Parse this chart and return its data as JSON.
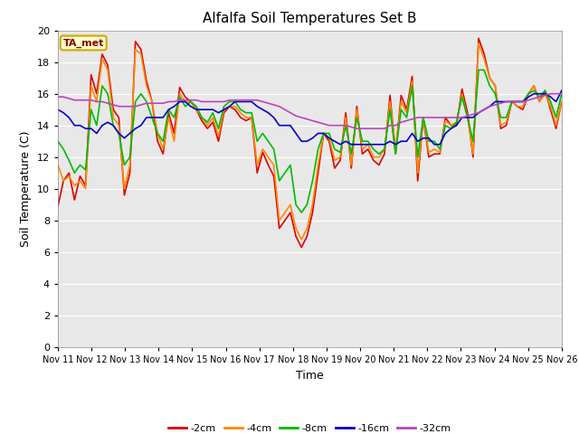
{
  "title": "Alfalfa Soil Temperatures Set B",
  "xlabel": "Time",
  "ylabel": "Soil Temperature (C)",
  "ylim": [
    0,
    20
  ],
  "yticks": [
    0,
    2,
    4,
    6,
    8,
    10,
    12,
    14,
    16,
    18,
    20
  ],
  "xtick_labels": [
    "Nov 11",
    "Nov 12",
    "Nov 13",
    "Nov 14",
    "Nov 15",
    "Nov 16",
    "Nov 17",
    "Nov 18",
    "Nov 19",
    "Nov 20",
    "Nov 21",
    "Nov 22",
    "Nov 23",
    "Nov 24",
    "Nov 25",
    "Nov 26"
  ],
  "fig_bg_color": "#ffffff",
  "plot_bg_color": "#e8e8e8",
  "grid_color": "#ffffff",
  "annotation_text": "TA_met",
  "annotation_bg": "#ffffcc",
  "annotation_border": "#ccaa00",
  "annotation_text_color": "#880000",
  "colors": {
    "-2cm": "#dd0000",
    "-4cm": "#ff8800",
    "-8cm": "#00bb00",
    "-16cm": "#0000cc",
    "-32cm": "#bb44bb"
  },
  "linewidth": 1.2,
  "series": {
    "-2cm": [
      8.9,
      10.5,
      11.0,
      9.3,
      10.8,
      10.2,
      17.2,
      16.0,
      18.5,
      17.8,
      15.0,
      14.5,
      9.6,
      11.0,
      19.3,
      18.8,
      16.8,
      15.5,
      13.0,
      12.2,
      14.8,
      13.5,
      16.4,
      15.8,
      15.5,
      15.0,
      14.3,
      13.8,
      14.2,
      13.0,
      14.8,
      15.2,
      15.0,
      14.5,
      14.3,
      14.5,
      11.0,
      12.3,
      11.5,
      10.8,
      7.5,
      8.0,
      8.5,
      7.0,
      6.3,
      7.0,
      8.5,
      11.0,
      13.5,
      13.0,
      11.3,
      11.8,
      14.8,
      11.3,
      15.2,
      12.2,
      12.5,
      11.8,
      11.5,
      12.2,
      15.9,
      12.2,
      15.9,
      15.0,
      17.1,
      10.5,
      14.5,
      12.0,
      12.2,
      12.2,
      14.5,
      14.0,
      14.0,
      16.3,
      14.8,
      12.0,
      19.5,
      18.5,
      17.0,
      16.5,
      13.8,
      14.0,
      15.5,
      15.2,
      15.0,
      16.0,
      16.5,
      15.5,
      16.2,
      15.0,
      13.8,
      15.5
    ],
    "-4cm": [
      11.5,
      10.5,
      10.8,
      10.2,
      10.5,
      10.0,
      16.5,
      15.5,
      18.2,
      17.5,
      14.5,
      14.0,
      10.0,
      11.5,
      18.8,
      18.5,
      16.5,
      15.5,
      13.5,
      12.5,
      14.5,
      13.0,
      16.0,
      15.5,
      15.5,
      15.0,
      14.5,
      14.0,
      14.5,
      13.3,
      15.0,
      15.2,
      15.2,
      14.8,
      14.5,
      14.5,
      11.5,
      12.5,
      12.0,
      11.5,
      8.0,
      8.5,
      9.0,
      7.5,
      6.8,
      7.5,
      9.0,
      11.5,
      13.5,
      13.2,
      11.8,
      12.0,
      14.5,
      11.5,
      15.0,
      12.5,
      12.8,
      12.0,
      12.0,
      12.5,
      15.5,
      12.5,
      15.5,
      14.8,
      16.8,
      11.0,
      14.5,
      12.3,
      12.5,
      12.3,
      14.3,
      14.0,
      14.2,
      16.0,
      14.5,
      12.2,
      19.2,
      18.2,
      17.0,
      16.5,
      14.0,
      14.2,
      15.5,
      15.2,
      15.2,
      16.0,
      16.5,
      15.5,
      16.0,
      15.2,
      14.0,
      15.5
    ],
    "-8cm": [
      13.0,
      12.5,
      11.8,
      11.0,
      11.5,
      11.2,
      15.0,
      14.0,
      16.5,
      16.0,
      14.0,
      13.5,
      11.5,
      12.0,
      15.5,
      16.0,
      15.5,
      14.5,
      13.5,
      13.0,
      15.0,
      14.5,
      15.8,
      15.2,
      15.5,
      15.2,
      14.5,
      14.2,
      14.8,
      13.8,
      15.2,
      15.5,
      15.5,
      15.0,
      14.8,
      14.8,
      13.0,
      13.5,
      13.0,
      12.5,
      10.5,
      11.0,
      11.5,
      9.0,
      8.5,
      9.0,
      10.5,
      12.5,
      13.5,
      13.5,
      12.5,
      12.3,
      14.0,
      12.2,
      14.5,
      13.0,
      13.0,
      12.5,
      12.2,
      12.5,
      15.0,
      12.2,
      15.0,
      14.5,
      16.5,
      12.0,
      14.5,
      13.0,
      13.0,
      12.5,
      14.0,
      13.8,
      14.2,
      15.8,
      14.5,
      13.0,
      17.5,
      17.5,
      16.5,
      16.0,
      14.5,
      14.5,
      15.5,
      15.5,
      15.5,
      16.0,
      16.2,
      15.8,
      16.2,
      15.5,
      14.5,
      16.0
    ],
    "-16cm": [
      15.0,
      14.8,
      14.5,
      14.0,
      14.0,
      13.8,
      13.8,
      13.5,
      14.0,
      14.2,
      14.0,
      13.5,
      13.2,
      13.5,
      13.8,
      14.0,
      14.5,
      14.5,
      14.5,
      14.5,
      15.0,
      15.2,
      15.5,
      15.5,
      15.2,
      15.0,
      15.0,
      15.0,
      15.0,
      14.8,
      15.0,
      15.2,
      15.5,
      15.5,
      15.5,
      15.5,
      15.2,
      15.0,
      14.8,
      14.5,
      14.0,
      14.0,
      14.0,
      13.5,
      13.0,
      13.0,
      13.2,
      13.5,
      13.5,
      13.2,
      13.0,
      12.8,
      13.0,
      12.8,
      12.8,
      12.8,
      12.8,
      12.8,
      12.8,
      12.8,
      13.0,
      12.8,
      13.0,
      13.0,
      13.5,
      13.0,
      13.2,
      13.2,
      12.8,
      12.8,
      13.5,
      13.8,
      14.0,
      14.5,
      14.5,
      14.5,
      14.8,
      15.0,
      15.2,
      15.5,
      15.5,
      15.5,
      15.5,
      15.5,
      15.5,
      15.8,
      16.0,
      16.0,
      16.0,
      15.8,
      15.5,
      16.2
    ],
    "-32cm": [
      15.8,
      15.8,
      15.7,
      15.6,
      15.6,
      15.6,
      15.6,
      15.5,
      15.5,
      15.4,
      15.3,
      15.2,
      15.2,
      15.2,
      15.2,
      15.3,
      15.4,
      15.4,
      15.4,
      15.4,
      15.5,
      15.5,
      15.6,
      15.6,
      15.6,
      15.6,
      15.5,
      15.5,
      15.5,
      15.5,
      15.5,
      15.6,
      15.6,
      15.6,
      15.6,
      15.6,
      15.6,
      15.5,
      15.4,
      15.3,
      15.2,
      15.0,
      14.8,
      14.6,
      14.5,
      14.4,
      14.3,
      14.2,
      14.1,
      14.0,
      14.0,
      14.0,
      14.0,
      13.9,
      13.8,
      13.8,
      13.8,
      13.8,
      13.8,
      13.8,
      14.0,
      14.0,
      14.2,
      14.3,
      14.4,
      14.5,
      14.5,
      14.5,
      14.5,
      14.5,
      14.5,
      14.5,
      14.5,
      14.5,
      14.6,
      14.7,
      14.8,
      15.0,
      15.2,
      15.3,
      15.4,
      15.5,
      15.5,
      15.5,
      15.5,
      15.6,
      15.7,
      15.8,
      15.9,
      16.0,
      16.0,
      16.0
    ]
  }
}
